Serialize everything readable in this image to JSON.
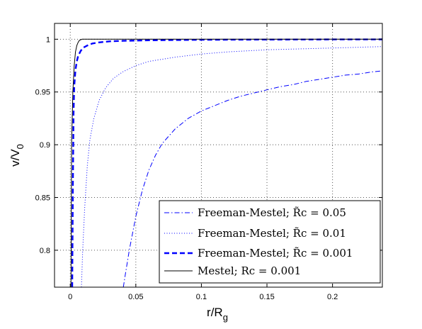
{
  "chart_data": {
    "type": "line",
    "title": "",
    "xlabel": "r/R",
    "xlabel_sub": "g",
    "ylabel": "v/V",
    "ylabel_sub": "0",
    "xlim": [
      -0.012,
      0.238
    ],
    "ylim": [
      0.765,
      1.015
    ],
    "grid": true,
    "grid_style": "dotted",
    "legend_placement": "bottom-right",
    "xticks": [
      0,
      0.05,
      0.1,
      0.15,
      0.2
    ],
    "xtick_labels": [
      "0",
      "0.05",
      "0.1",
      "0.15",
      "0.2"
    ],
    "yticks": [
      0.8,
      0.85,
      0.9,
      0.95,
      1.0
    ],
    "ytick_labels": [
      "0.8",
      "0.85",
      "0.9",
      "0.95",
      "1"
    ],
    "series": [
      {
        "name": "Freeman-Mestel; R̃c = 0.05",
        "color": "#0000ff",
        "style": "dash-dot",
        "x": [
          0.0405,
          0.042,
          0.045,
          0.05,
          0.055,
          0.06,
          0.065,
          0.07,
          0.08,
          0.09,
          0.1,
          0.11,
          0.12,
          0.13,
          0.14,
          0.15,
          0.16,
          0.17,
          0.18,
          0.19,
          0.2,
          0.21,
          0.22,
          0.23,
          0.238
        ],
        "y": [
          0.765,
          0.777,
          0.8,
          0.832,
          0.857,
          0.876,
          0.89,
          0.901,
          0.915,
          0.925,
          0.932,
          0.937,
          0.942,
          0.946,
          0.949,
          0.952,
          0.955,
          0.957,
          0.96,
          0.962,
          0.964,
          0.966,
          0.967,
          0.969,
          0.97
        ]
      },
      {
        "name": "Freeman-Mestel; R̃c = 0.01",
        "color": "#0000ff",
        "style": "dotted",
        "x": [
          0.0085,
          0.0095,
          0.011,
          0.013,
          0.015,
          0.018,
          0.022,
          0.027,
          0.033,
          0.04,
          0.05,
          0.06,
          0.07,
          0.08,
          0.1,
          0.12,
          0.15,
          0.18,
          0.21,
          0.238
        ],
        "y": [
          0.765,
          0.8,
          0.84,
          0.88,
          0.905,
          0.925,
          0.942,
          0.954,
          0.963,
          0.969,
          0.975,
          0.979,
          0.981,
          0.983,
          0.986,
          0.988,
          0.99,
          0.991,
          0.992,
          0.993
        ]
      },
      {
        "name": "Freeman-Mestel; R̃c = 0.001",
        "color": "#0000ff",
        "style": "dashed",
        "x": [
          0.0015,
          0.002,
          0.0025,
          0.003,
          0.004,
          0.005,
          0.006,
          0.008,
          0.01,
          0.013,
          0.017,
          0.022,
          0.03,
          0.04,
          0.06,
          0.1,
          0.15,
          0.2,
          0.238
        ],
        "y": [
          0.765,
          0.86,
          0.93,
          0.955,
          0.971,
          0.979,
          0.984,
          0.989,
          0.992,
          0.994,
          0.996,
          0.997,
          0.998,
          0.9985,
          0.999,
          0.9995,
          0.9997,
          0.9998,
          0.9999
        ]
      },
      {
        "name": "Mestel; Rc = 0.001",
        "color": "#000000",
        "style": "solid",
        "x": [
          0.0005,
          0.0008,
          0.001,
          0.002,
          0.003,
          0.004,
          0.005,
          0.006,
          0.007,
          0.008,
          0.009,
          0.01,
          0.02,
          0.1,
          0.238
        ],
        "y": [
          0.765,
          0.84,
          0.9,
          0.95,
          0.975,
          0.988,
          0.994,
          0.997,
          0.999,
          0.9995,
          1.0,
          1.0,
          1.0,
          1.0,
          1.0
        ]
      }
    ]
  }
}
